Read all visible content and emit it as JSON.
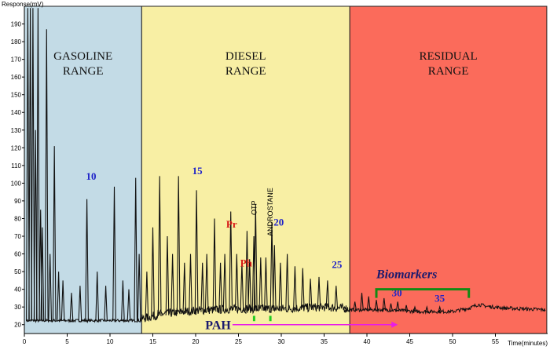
{
  "chart_data": {
    "type": "line",
    "title": "",
    "xlabel": "Time(minutes)",
    "ylabel": "Response(mV)",
    "xlim": [
      0,
      60
    ],
    "ylim": [
      15,
      200
    ],
    "x_ticks": [
      0,
      5,
      10,
      15,
      20,
      25,
      30,
      35,
      40,
      45,
      50,
      55
    ],
    "y_ticks": [
      20,
      30,
      40,
      50,
      60,
      70,
      80,
      90,
      100,
      110,
      120,
      130,
      140,
      150,
      160,
      170,
      180,
      190
    ],
    "grid": false,
    "regions": [
      {
        "label_line1": "GASOLINE",
        "label_line2": "RANGE",
        "x_start": 0,
        "x_end": 13.7,
        "color": "#c3dbe6"
      },
      {
        "label_line1": "DIESEL",
        "label_line2": "RANGE",
        "x_start": 13.7,
        "x_end": 38,
        "color": "#f8efa4"
      },
      {
        "label_line1": "RESIDUAL",
        "label_line2": "RANGE",
        "x_start": 38,
        "x_end": 61,
        "color": "#fb6b5b"
      }
    ],
    "baseline": [
      [
        0.3,
        22
      ],
      [
        13.5,
        22
      ],
      [
        16,
        25
      ],
      [
        20,
        27
      ],
      [
        25,
        28
      ],
      [
        30,
        28
      ],
      [
        35,
        29
      ],
      [
        38,
        28
      ],
      [
        42,
        28
      ],
      [
        46,
        27
      ],
      [
        50,
        27
      ],
      [
        52,
        29
      ],
      [
        53,
        31
      ],
      [
        54,
        30
      ],
      [
        56,
        29
      ],
      [
        61,
        28
      ]
    ],
    "peaks": [
      {
        "x": 0.4,
        "y": 199
      },
      {
        "x": 0.7,
        "y": 199
      },
      {
        "x": 1.0,
        "y": 199
      },
      {
        "x": 1.3,
        "y": 130
      },
      {
        "x": 1.6,
        "y": 199
      },
      {
        "x": 1.9,
        "y": 85
      },
      {
        "x": 2.1,
        "y": 75
      },
      {
        "x": 2.6,
        "y": 187
      },
      {
        "x": 3.0,
        "y": 60
      },
      {
        "x": 3.5,
        "y": 121
      },
      {
        "x": 4.0,
        "y": 50
      },
      {
        "x": 4.5,
        "y": 45
      },
      {
        "x": 5.5,
        "y": 38
      },
      {
        "x": 6.5,
        "y": 42
      },
      {
        "x": 7.3,
        "y": 91
      },
      {
        "x": 8.5,
        "y": 50
      },
      {
        "x": 9.5,
        "y": 42
      },
      {
        "x": 10.5,
        "y": 98
      },
      {
        "x": 11.5,
        "y": 45
      },
      {
        "x": 12.2,
        "y": 40
      },
      {
        "x": 13.0,
        "y": 103
      },
      {
        "x": 13.4,
        "y": 60
      },
      {
        "x": 14.3,
        "y": 50
      },
      {
        "x": 15.0,
        "y": 75
      },
      {
        "x": 15.8,
        "y": 104
      },
      {
        "x": 16.7,
        "y": 70
      },
      {
        "x": 17.3,
        "y": 60
      },
      {
        "x": 18.0,
        "y": 104
      },
      {
        "x": 18.7,
        "y": 55
      },
      {
        "x": 19.4,
        "y": 60
      },
      {
        "x": 20.1,
        "y": 96
      },
      {
        "x": 20.8,
        "y": 55
      },
      {
        "x": 21.3,
        "y": 60
      },
      {
        "x": 22.2,
        "y": 80
      },
      {
        "x": 22.9,
        "y": 55
      },
      {
        "x": 23.4,
        "y": 60
      },
      {
        "x": 24.1,
        "y": 84
      },
      {
        "x": 24.8,
        "y": 60
      },
      {
        "x": 25.4,
        "y": 55
      },
      {
        "x": 26.0,
        "y": 73
      },
      {
        "x": 26.3,
        "y": 57
      },
      {
        "x": 26.8,
        "y": 70
      },
      {
        "x": 27.0,
        "y": 88
      },
      {
        "x": 27.6,
        "y": 58
      },
      {
        "x": 28.2,
        "y": 58
      },
      {
        "x": 28.9,
        "y": 78
      },
      {
        "x": 29.2,
        "y": 65
      },
      {
        "x": 29.9,
        "y": 55
      },
      {
        "x": 30.7,
        "y": 60
      },
      {
        "x": 31.6,
        "y": 53
      },
      {
        "x": 32.5,
        "y": 52
      },
      {
        "x": 33.4,
        "y": 46
      },
      {
        "x": 34.4,
        "y": 47
      },
      {
        "x": 35.4,
        "y": 45
      },
      {
        "x": 36.4,
        "y": 42
      },
      {
        "x": 37.4,
        "y": 30
      },
      {
        "x": 38.6,
        "y": 33
      },
      {
        "x": 39.4,
        "y": 38
      },
      {
        "x": 40.2,
        "y": 36
      },
      {
        "x": 41.1,
        "y": 34
      },
      {
        "x": 42.0,
        "y": 35
      },
      {
        "x": 42.8,
        "y": 32
      },
      {
        "x": 43.6,
        "y": 33
      },
      {
        "x": 44.6,
        "y": 31
      },
      {
        "x": 45.6,
        "y": 30
      },
      {
        "x": 47.0,
        "y": 30
      },
      {
        "x": 48.5,
        "y": 30
      }
    ],
    "annotations": {
      "carbon_numbers": [
        {
          "text": "10",
          "x": 7.8,
          "y": 102
        },
        {
          "text": "15",
          "x": 20.2,
          "y": 105
        },
        {
          "text": "20",
          "x": 29.7,
          "y": 76
        },
        {
          "text": "25",
          "x": 36.5,
          "y": 52
        },
        {
          "text": "30",
          "x": 43.5,
          "y": 36
        },
        {
          "text": "35",
          "x": 48.5,
          "y": 33
        }
      ],
      "compounds": [
        {
          "text": "Pr",
          "x": 24.2,
          "y": 75
        },
        {
          "text": "Ph",
          "x": 25.9,
          "y": 53
        }
      ],
      "standards": [
        {
          "text": "OTP",
          "x": 27.1,
          "y": 82
        },
        {
          "text": "ANDROSTANE",
          "x": 29.0,
          "y": 70
        }
      ],
      "pah": {
        "text": "PAH",
        "x_start": 24.3,
        "x_end": 43.6,
        "y": 20
      },
      "biomarkers": {
        "text": "Biomarkers",
        "x_start": 41.1,
        "x_end": 51.9,
        "y": 40
      }
    },
    "colors": {
      "carbon_number": "#1f23c8",
      "compound": "#d61414",
      "pah_arrow": "#e81ce8",
      "bracket": "#138a13",
      "marker": "#22cc22",
      "trace": "#111111"
    }
  }
}
